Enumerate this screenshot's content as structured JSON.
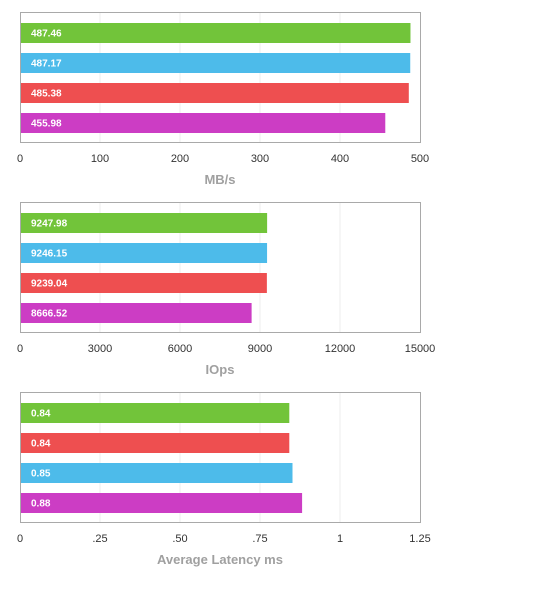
{
  "colors": {
    "green": "#72c43a",
    "blue": "#4dbbea",
    "red": "#ee4f50",
    "magenta": "#cc3dc4"
  },
  "chart_data": [
    {
      "type": "bar",
      "orientation": "horizontal",
      "xlabel": "MB/s",
      "xlim": [
        0,
        500
      ],
      "ticks": [
        0,
        100,
        200,
        300,
        400,
        500
      ],
      "tick_labels": [
        "0",
        "100",
        "200",
        "300",
        "400",
        "500"
      ],
      "grid": true,
      "bars": [
        {
          "value": 487.46,
          "label": "487.46",
          "color": "#72c43a"
        },
        {
          "value": 487.17,
          "label": "487.17",
          "color": "#4dbbea"
        },
        {
          "value": 485.38,
          "label": "485.38",
          "color": "#ee4f50"
        },
        {
          "value": 455.98,
          "label": "455.98",
          "color": "#cc3dc4"
        }
      ]
    },
    {
      "type": "bar",
      "orientation": "horizontal",
      "xlabel": "IOps",
      "xlim": [
        0,
        15000
      ],
      "ticks": [
        0,
        3000,
        6000,
        9000,
        12000,
        15000
      ],
      "tick_labels": [
        "0",
        "3000",
        "6000",
        "9000",
        "12000",
        "15000"
      ],
      "grid": true,
      "bars": [
        {
          "value": 9247.98,
          "label": "9247.98",
          "color": "#72c43a"
        },
        {
          "value": 9246.15,
          "label": "9246.15",
          "color": "#4dbbea"
        },
        {
          "value": 9239.04,
          "label": "9239.04",
          "color": "#ee4f50"
        },
        {
          "value": 8666.52,
          "label": "8666.52",
          "color": "#cc3dc4"
        }
      ]
    },
    {
      "type": "bar",
      "orientation": "horizontal",
      "xlabel": "Average Latency ms",
      "xlim": [
        0,
        1.25
      ],
      "ticks": [
        0,
        0.25,
        0.5,
        0.75,
        1,
        1.25
      ],
      "tick_labels": [
        "0",
        ".25",
        ".50",
        ".75",
        "1",
        "1.25"
      ],
      "grid": true,
      "bars": [
        {
          "value": 0.84,
          "label": "0.84",
          "color": "#72c43a"
        },
        {
          "value": 0.84,
          "label": "0.84",
          "color": "#ee4f50"
        },
        {
          "value": 0.85,
          "label": "0.85",
          "color": "#4dbbea"
        },
        {
          "value": 0.88,
          "label": "0.88",
          "color": "#cc3dc4"
        }
      ]
    }
  ]
}
